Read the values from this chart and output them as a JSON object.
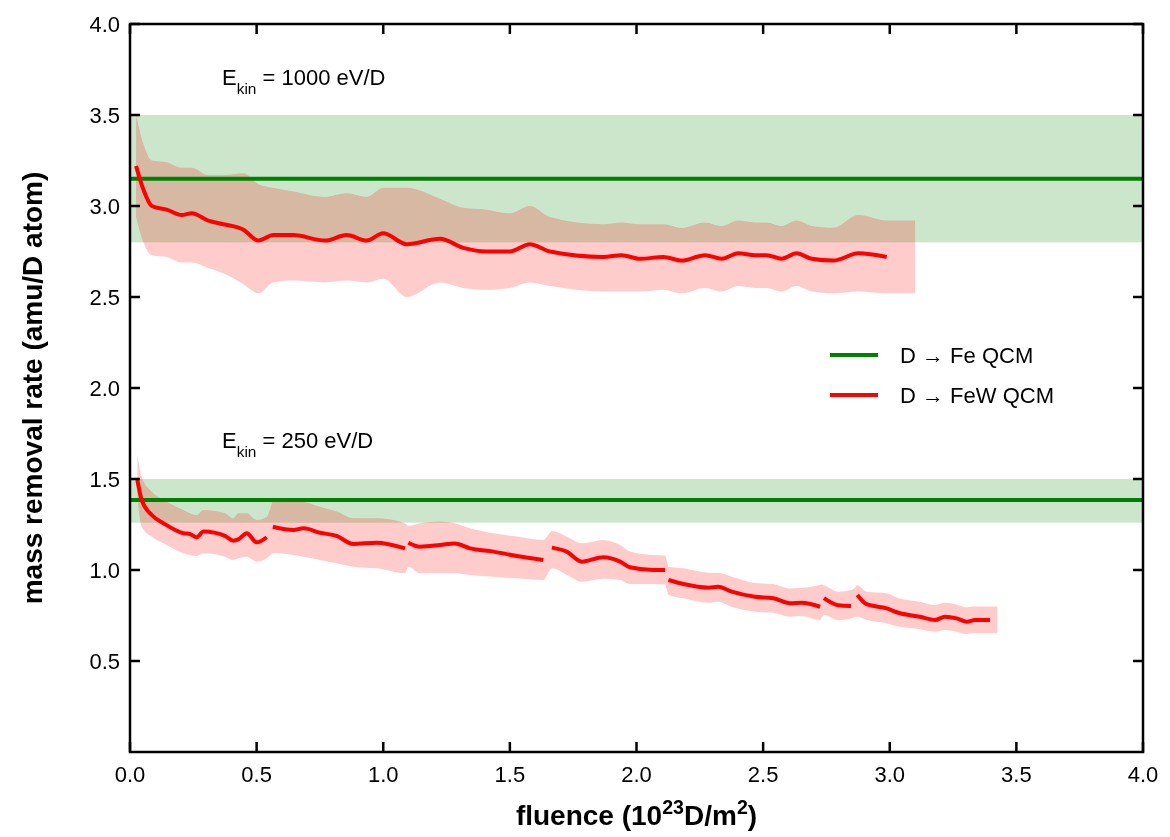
{
  "chart_data": {
    "type": "line",
    "xlabel": "fluence (10$^{23}$D/m$^{2}$)",
    "ylabel": "mass removal rate (amu/D atom)",
    "xlim": [
      0,
      4
    ],
    "ylim": [
      0,
      4
    ],
    "xticks": [
      {
        "value": 0,
        "label": "0.0"
      },
      {
        "value": 0.5,
        "label": "0.5"
      },
      {
        "value": 1,
        "label": "1.0"
      },
      {
        "value": 1.5,
        "label": "1.5"
      },
      {
        "value": 2,
        "label": "2.0"
      },
      {
        "value": 2.5,
        "label": "2.5"
      },
      {
        "value": 3,
        "label": "3.0"
      },
      {
        "value": 3.5,
        "label": "3.5"
      },
      {
        "value": 4,
        "label": "4.0"
      }
    ],
    "yticks": [
      {
        "value": 0.5,
        "label": "0.5"
      },
      {
        "value": 1,
        "label": "1.0"
      },
      {
        "value": 1.5,
        "label": "1.5"
      },
      {
        "value": 2,
        "label": "2.0"
      },
      {
        "value": 2.5,
        "label": "2.5"
      },
      {
        "value": 3,
        "label": "3.0"
      },
      {
        "value": 3.5,
        "label": "3.5"
      },
      {
        "value": 4,
        "label": "4.0"
      }
    ],
    "bands": [
      {
        "axis": "y",
        "from": 2.8,
        "to": 3.5,
        "color": "#008000"
      },
      {
        "axis": "y",
        "from": 1.26,
        "to": 1.5,
        "color": "#008000"
      }
    ],
    "grid": false,
    "legend": "right",
    "line_style": "solid",
    "marker": "none",
    "annotations": [
      "E$_{kin}$ = 1000 eV/D",
      "E$_{kin}$ = 250 eV/D"
    ],
    "series": [
      {
        "name": "D → Fe QCM",
        "color": "#008000",
        "x": [
          0,
          4
        ],
        "values": [
          3.15,
          3.15
        ]
      },
      {
        "color": "#008000",
        "x": [
          0,
          4
        ],
        "values": [
          1.385,
          1.385
        ]
      },
      {
        "name": "D → FeW QCM",
        "color": "#ff0000",
        "x": [
          0.024,
          0.053,
          0.086,
          0.145,
          0.204,
          0.244,
          0.309,
          0.369,
          0.448,
          0.507,
          0.566,
          0.645,
          0.77,
          0.856,
          0.935,
          1.0,
          1.093,
          1.224,
          1.316,
          1.408,
          1.5,
          1.579,
          1.658,
          1.869,
          1.941,
          2.014,
          2.106,
          2.178,
          2.271,
          2.336,
          2.402,
          2.468,
          2.514,
          2.573,
          2.632,
          2.692,
          2.777,
          2.876,
          2.988,
          3.1
        ],
        "values": [
          3.22,
          3.09,
          3.0,
          2.98,
          2.95,
          2.96,
          2.92,
          2.9,
          2.87,
          2.81,
          2.84,
          2.84,
          2.81,
          2.84,
          2.81,
          2.85,
          2.79,
          2.82,
          2.77,
          2.75,
          2.75,
          2.79,
          2.75,
          2.72,
          2.73,
          2.71,
          2.72,
          2.7,
          2.73,
          2.71,
          2.74,
          2.73,
          2.73,
          2.71,
          2.74,
          2.71,
          2.7,
          2.74,
          2.72,
          null
        ],
        "lower": [
          2.94,
          2.8,
          2.73,
          2.72,
          2.69,
          2.69,
          2.66,
          2.63,
          2.57,
          2.52,
          2.58,
          2.59,
          2.58,
          2.59,
          2.58,
          2.6,
          2.5,
          2.58,
          2.55,
          2.54,
          2.55,
          2.58,
          2.56,
          2.53,
          2.53,
          2.53,
          2.54,
          2.52,
          2.55,
          2.53,
          2.56,
          2.55,
          2.55,
          2.53,
          2.56,
          2.53,
          2.52,
          2.53,
          2.52,
          2.52
        ],
        "upper": [
          3.5,
          3.34,
          3.25,
          3.24,
          3.21,
          3.21,
          3.17,
          3.17,
          3.18,
          3.12,
          3.1,
          3.08,
          3.05,
          3.07,
          3.05,
          3.1,
          3.1,
          3.04,
          2.99,
          2.98,
          2.96,
          3.0,
          2.94,
          2.9,
          2.91,
          2.9,
          2.9,
          2.88,
          2.91,
          2.89,
          2.92,
          2.91,
          2.91,
          2.89,
          2.92,
          2.89,
          2.88,
          2.95,
          2.92,
          2.92
        ]
      },
      {
        "color": "#ff0000",
        "x": [
          0.029,
          0.046,
          0.086,
          0.132,
          0.211,
          0.237,
          0.263,
          0.29,
          0.375,
          0.408,
          0.428,
          0.461,
          0.5,
          0.54,
          0.552,
          0.564,
          0.645,
          0.685,
          0.75,
          0.816,
          0.882,
          0.974,
          1.086,
          1.092,
          1.099,
          1.145,
          1.224,
          1.283,
          1.343,
          1.435,
          1.527,
          1.632,
          1.65,
          1.666,
          1.724,
          1.784,
          1.869,
          1.935,
          1.974,
          2.066,
          2.113,
          2.12,
          2.126,
          2.185,
          2.284,
          2.323,
          2.376,
          2.468,
          2.54,
          2.606,
          2.652,
          2.725,
          2.732,
          2.74,
          2.797,
          2.847,
          2.86,
          2.872,
          2.909,
          2.988,
          3.034,
          3.119,
          3.179,
          3.218,
          3.264,
          3.304,
          3.337,
          3.396,
          3.425
        ],
        "values": [
          1.495,
          1.385,
          1.302,
          1.257,
          1.202,
          1.198,
          1.18,
          1.211,
          1.187,
          1.161,
          1.168,
          1.202,
          1.152,
          1.18,
          null,
          1.238,
          1.22,
          1.229,
          1.205,
          1.187,
          1.143,
          1.15,
          1.119,
          null,
          1.15,
          1.128,
          1.137,
          1.146,
          1.119,
          1.101,
          1.077,
          1.055,
          null,
          1.123,
          1.101,
          1.046,
          1.07,
          1.046,
          1.015,
          1.0,
          1.0,
          null,
          0.945,
          0.923,
          0.903,
          0.908,
          0.881,
          0.853,
          0.845,
          0.817,
          0.82,
          0.798,
          null,
          0.845,
          0.806,
          0.802,
          null,
          0.863,
          0.812,
          0.789,
          0.765,
          0.743,
          0.725,
          0.743,
          0.734,
          0.716,
          0.725,
          0.725,
          null
        ],
        "lower": [
          1.4,
          1.238,
          1.183,
          1.147,
          1.092,
          1.083,
          1.077,
          1.092,
          1.073,
          1.055,
          1.064,
          1.073,
          1.046,
          1.064,
          1.08,
          1.092,
          1.083,
          1.073,
          1.055,
          1.037,
          1.018,
          1.009,
          0.982,
          1.0,
          1.018,
          0.982,
          0.982,
          0.982,
          0.973,
          0.963,
          0.954,
          0.945,
          0.98,
          1.009,
          0.974,
          0.936,
          0.952,
          0.945,
          0.923,
          0.923,
          0.92,
          0.89,
          0.863,
          0.845,
          0.82,
          0.826,
          0.798,
          0.771,
          0.765,
          0.743,
          0.747,
          0.725,
          0.74,
          0.753,
          0.725,
          0.734,
          0.74,
          0.743,
          0.725,
          0.707,
          0.689,
          0.674,
          0.661,
          0.67,
          0.661,
          0.648,
          0.652,
          0.652,
          0.652
        ],
        "upper": [
          1.632,
          1.513,
          1.43,
          1.385,
          1.33,
          1.312,
          1.302,
          1.33,
          1.312,
          1.284,
          1.312,
          1.312,
          1.275,
          1.293,
          1.33,
          1.375,
          1.385,
          1.375,
          1.348,
          1.321,
          1.284,
          1.284,
          1.257,
          1.25,
          1.243,
          1.257,
          1.266,
          1.257,
          1.229,
          1.202,
          1.184,
          1.165,
          1.19,
          1.214,
          1.184,
          1.147,
          1.165,
          1.137,
          1.101,
          1.082,
          1.08,
          1.05,
          1.018,
          1.009,
          0.985,
          0.985,
          0.963,
          0.929,
          0.923,
          0.899,
          0.901,
          0.918,
          0.92,
          0.916,
          0.881,
          0.89,
          0.9,
          0.916,
          0.881,
          0.872,
          0.845,
          0.826,
          0.808,
          0.82,
          0.811,
          0.795,
          0.799,
          0.799,
          0.799
        ]
      }
    ]
  }
}
